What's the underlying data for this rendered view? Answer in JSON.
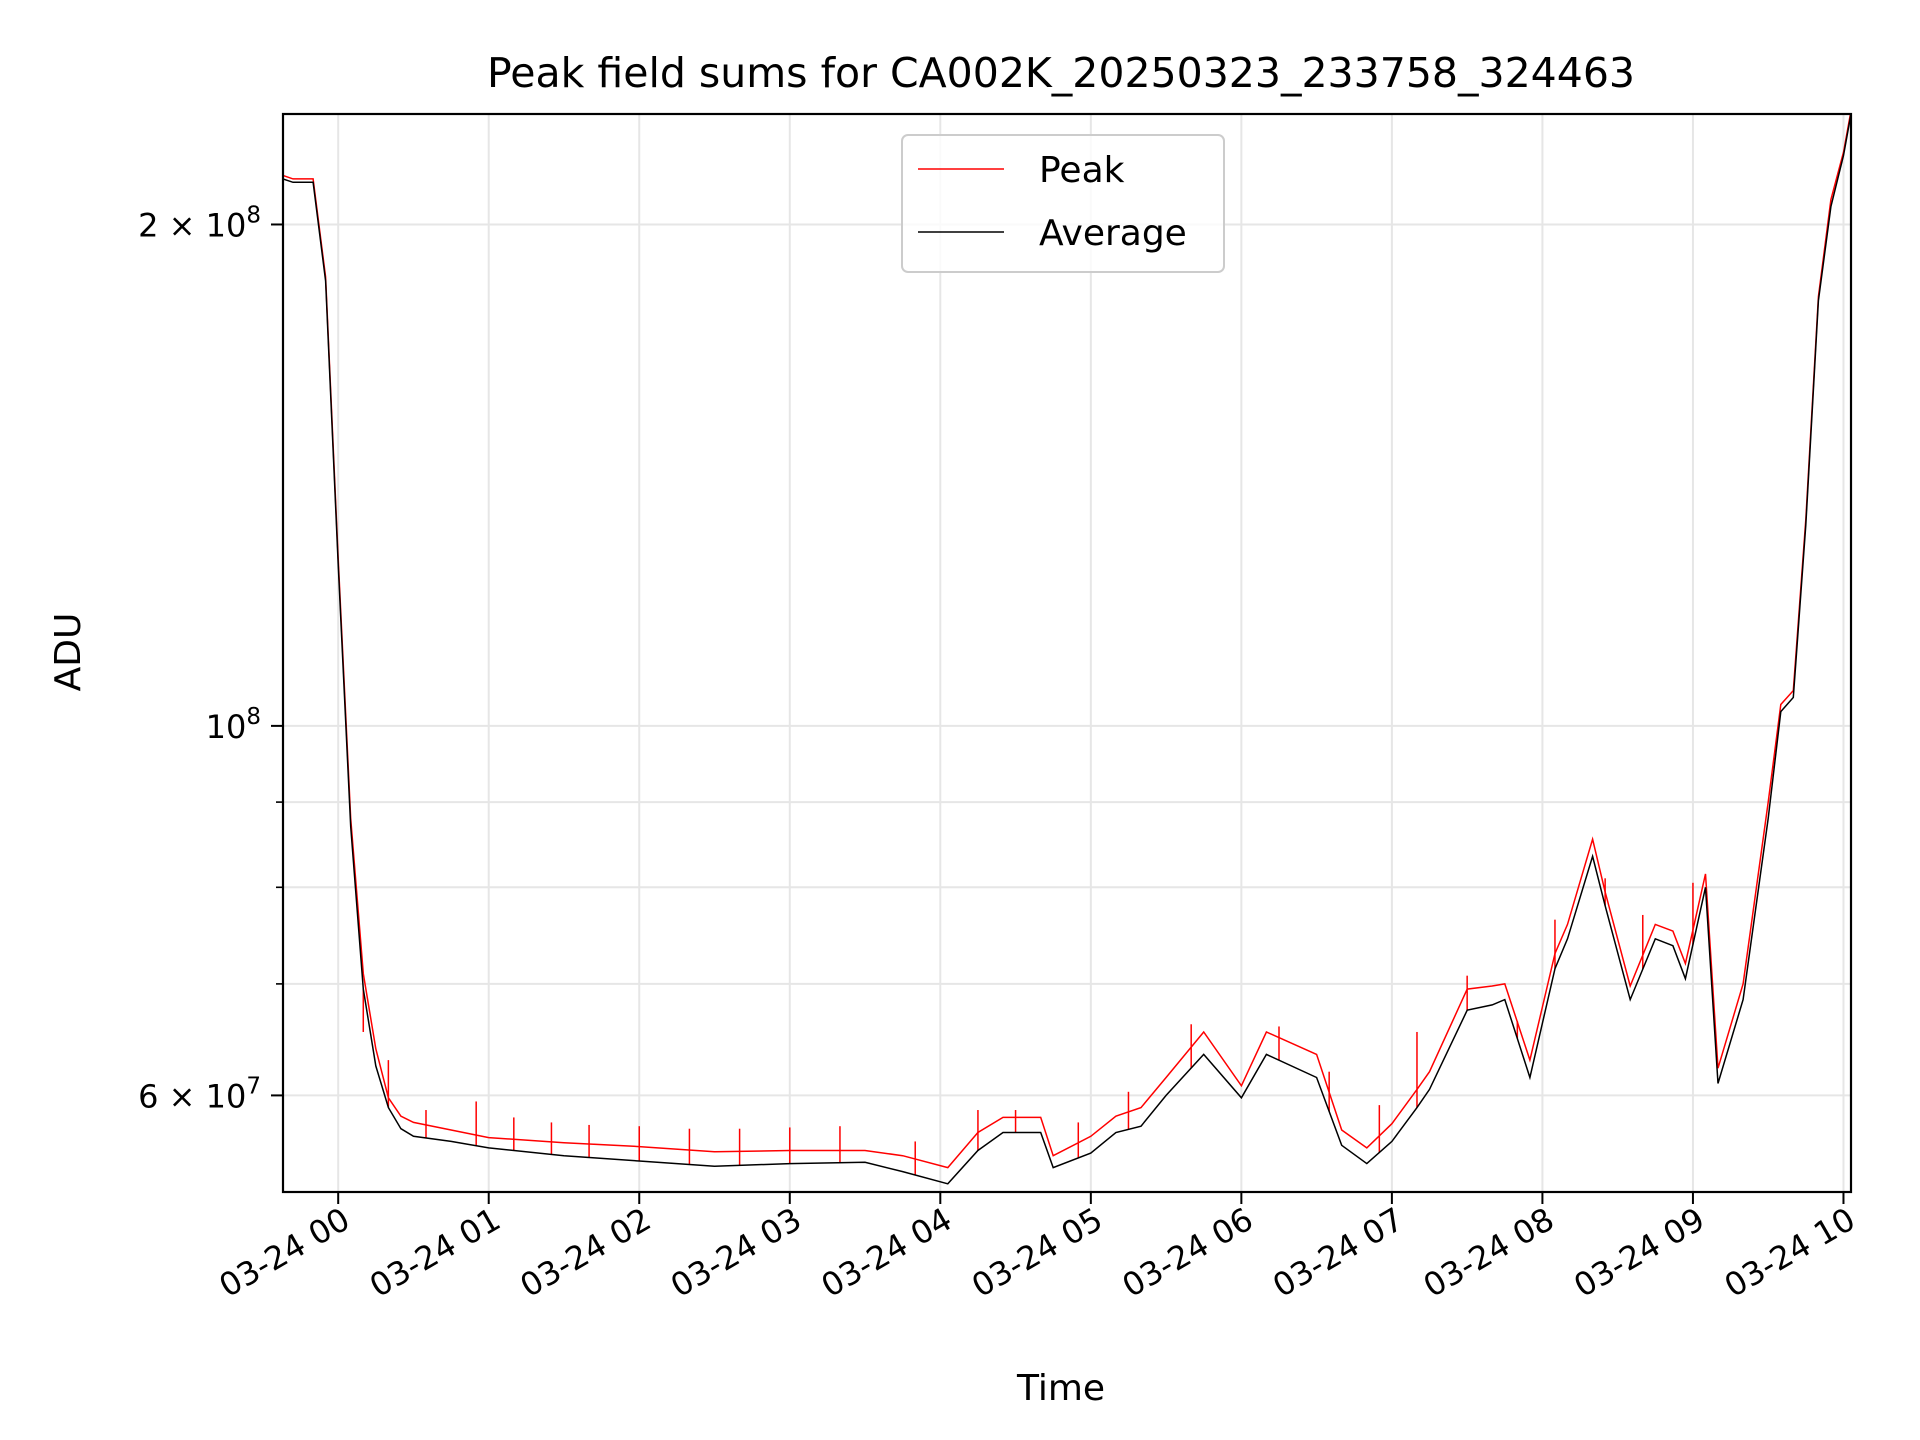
{
  "chart_data": {
    "type": "line",
    "title": "Peak field sums for CA002K_20250323_233758_324463",
    "xlabel": "Time",
    "ylabel": "ADU",
    "y_scale": "log",
    "xlim": [
      "2025-03-23 23:38",
      "2025-03-24 10:03"
    ],
    "ylim": [
      52500000,
      233000000
    ],
    "grid": true,
    "legend_position": "upper center",
    "x_ticks": [
      {
        "t": "2025-03-24 00:00",
        "label": "03-24 00"
      },
      {
        "t": "2025-03-24 01:00",
        "label": "03-24 01"
      },
      {
        "t": "2025-03-24 02:00",
        "label": "03-24 02"
      },
      {
        "t": "2025-03-24 03:00",
        "label": "03-24 03"
      },
      {
        "t": "2025-03-24 04:00",
        "label": "03-24 04"
      },
      {
        "t": "2025-03-24 05:00",
        "label": "03-24 05"
      },
      {
        "t": "2025-03-24 06:00",
        "label": "03-24 06"
      },
      {
        "t": "2025-03-24 07:00",
        "label": "03-24 07"
      },
      {
        "t": "2025-03-24 08:00",
        "label": "03-24 08"
      },
      {
        "t": "2025-03-24 09:00",
        "label": "03-24 09"
      },
      {
        "t": "2025-03-24 10:00",
        "label": "03-24 10"
      }
    ],
    "y_major_ticks": [
      {
        "value": 60000000,
        "base": "6",
        "exp": "7"
      },
      {
        "value": 100000000,
        "base": "",
        "exp": "8"
      },
      {
        "value": 200000000,
        "base": "2",
        "exp": "8"
      }
    ],
    "y_minor_ticks": [
      70000000,
      80000000,
      90000000
    ],
    "series": [
      {
        "name": "Peak",
        "color": "#ff0000"
      },
      {
        "name": "Average",
        "color": "#000000"
      }
    ],
    "x": [
      "2025-03-23 23:38",
      "2025-03-23 23:42",
      "2025-03-23 23:46",
      "2025-03-23 23:50",
      "2025-03-23 23:55",
      "2025-03-24 00:00",
      "2025-03-24 00:05",
      "2025-03-24 00:10",
      "2025-03-24 00:15",
      "2025-03-24 00:20",
      "2025-03-24 00:25",
      "2025-03-24 00:30",
      "2025-03-24 00:45",
      "2025-03-24 01:00",
      "2025-03-24 01:30",
      "2025-03-24 02:00",
      "2025-03-24 02:30",
      "2025-03-24 03:00",
      "2025-03-24 03:30",
      "2025-03-24 03:45",
      "2025-03-24 04:03",
      "2025-03-24 04:15",
      "2025-03-24 04:25",
      "2025-03-24 04:40",
      "2025-03-24 04:45",
      "2025-03-24 05:00",
      "2025-03-24 05:10",
      "2025-03-24 05:20",
      "2025-03-24 05:30",
      "2025-03-24 05:45",
      "2025-03-24 06:00",
      "2025-03-24 06:10",
      "2025-03-24 06:30",
      "2025-03-24 06:40",
      "2025-03-24 06:50",
      "2025-03-24 07:00",
      "2025-03-24 07:10",
      "2025-03-24 07:15",
      "2025-03-24 07:30",
      "2025-03-24 07:40",
      "2025-03-24 07:45",
      "2025-03-24 07:55",
      "2025-03-24 08:05",
      "2025-03-24 08:10",
      "2025-03-24 08:20",
      "2025-03-24 08:25",
      "2025-03-24 08:35",
      "2025-03-24 08:45",
      "2025-03-24 08:52",
      "2025-03-24 08:57",
      "2025-03-24 09:05",
      "2025-03-24 09:10",
      "2025-03-24 09:20",
      "2025-03-24 09:30",
      "2025-03-24 09:35",
      "2025-03-24 09:40",
      "2025-03-24 09:45",
      "2025-03-24 09:50",
      "2025-03-24 09:55",
      "2025-03-24 10:00",
      "2025-03-24 10:03"
    ],
    "average": [
      213000000,
      212000000,
      212000000,
      212000000,
      185000000,
      125000000,
      87000000,
      69500000,
      62500000,
      59000000,
      57300000,
      56700000,
      56300000,
      55800000,
      55200000,
      54800000,
      54400000,
      54600000,
      54700000,
      54000000,
      53100000,
      55600000,
      57000000,
      57000000,
      54300000,
      55400000,
      57000000,
      57500000,
      60000000,
      63500000,
      59800000,
      63500000,
      61500000,
      56000000,
      54600000,
      56300000,
      59000000,
      60500000,
      67500000,
      68000000,
      68500000,
      61500000,
      71500000,
      74500000,
      83500000,
      78000000,
      68500000,
      74500000,
      73800000,
      70500000,
      80000000,
      61000000,
      68500000,
      88000000,
      102000000,
      104000000,
      132000000,
      180000000,
      205000000,
      220000000,
      233000000
    ],
    "peak": [
      214000000,
      213000000,
      213000000,
      213000000,
      186000000,
      126000000,
      88000000,
      71000000,
      64000000,
      59800000,
      58300000,
      57800000,
      57200000,
      56600000,
      56200000,
      55900000,
      55500000,
      55600000,
      55600000,
      55200000,
      54300000,
      57000000,
      58200000,
      58200000,
      55200000,
      56700000,
      58300000,
      59000000,
      61500000,
      65500000,
      60800000,
      65500000,
      63500000,
      57200000,
      55800000,
      57700000,
      60500000,
      62000000,
      69500000,
      69800000,
      70000000,
      63000000,
      73000000,
      76000000,
      85500000,
      79500000,
      69800000,
      76000000,
      75300000,
      72000000,
      81500000,
      62300000,
      70000000,
      90000000,
      103000000,
      105000000,
      133000000,
      181000000,
      207000000,
      221000000,
      234000000
    ],
    "peak_spikes": [
      {
        "t": "2025-03-24 00:10",
        "value": 65500000
      },
      {
        "t": "2025-03-24 00:20",
        "value": 63000000
      },
      {
        "t": "2025-03-24 00:35",
        "value": 58800000
      },
      {
        "t": "2025-03-24 00:55",
        "value": 59500000
      },
      {
        "t": "2025-03-24 01:10",
        "value": 58200000
      },
      {
        "t": "2025-03-24 01:25",
        "value": 57800000
      },
      {
        "t": "2025-03-24 01:40",
        "value": 57600000
      },
      {
        "t": "2025-03-24 02:00",
        "value": 57500000
      },
      {
        "t": "2025-03-24 02:20",
        "value": 57300000
      },
      {
        "t": "2025-03-24 02:40",
        "value": 57300000
      },
      {
        "t": "2025-03-24 03:00",
        "value": 57400000
      },
      {
        "t": "2025-03-24 03:20",
        "value": 57500000
      },
      {
        "t": "2025-03-24 03:50",
        "value": 56300000
      },
      {
        "t": "2025-03-24 04:15",
        "value": 58800000
      },
      {
        "t": "2025-03-24 04:30",
        "value": 58800000
      },
      {
        "t": "2025-03-24 04:55",
        "value": 57800000
      },
      {
        "t": "2025-03-24 05:15",
        "value": 60300000
      },
      {
        "t": "2025-03-24 05:40",
        "value": 66200000
      },
      {
        "t": "2025-03-24 06:15",
        "value": 66000000
      },
      {
        "t": "2025-03-24 06:35",
        "value": 62000000
      },
      {
        "t": "2025-03-24 06:55",
        "value": 59200000
      },
      {
        "t": "2025-03-24 07:10",
        "value": 65500000
      },
      {
        "t": "2025-03-24 07:30",
        "value": 70800000
      },
      {
        "t": "2025-03-24 07:50",
        "value": 66500000
      },
      {
        "t": "2025-03-24 08:05",
        "value": 76500000
      },
      {
        "t": "2025-03-24 08:25",
        "value": 81000000
      },
      {
        "t": "2025-03-24 08:40",
        "value": 77000000
      },
      {
        "t": "2025-03-24 09:00",
        "value": 80500000
      }
    ]
  }
}
